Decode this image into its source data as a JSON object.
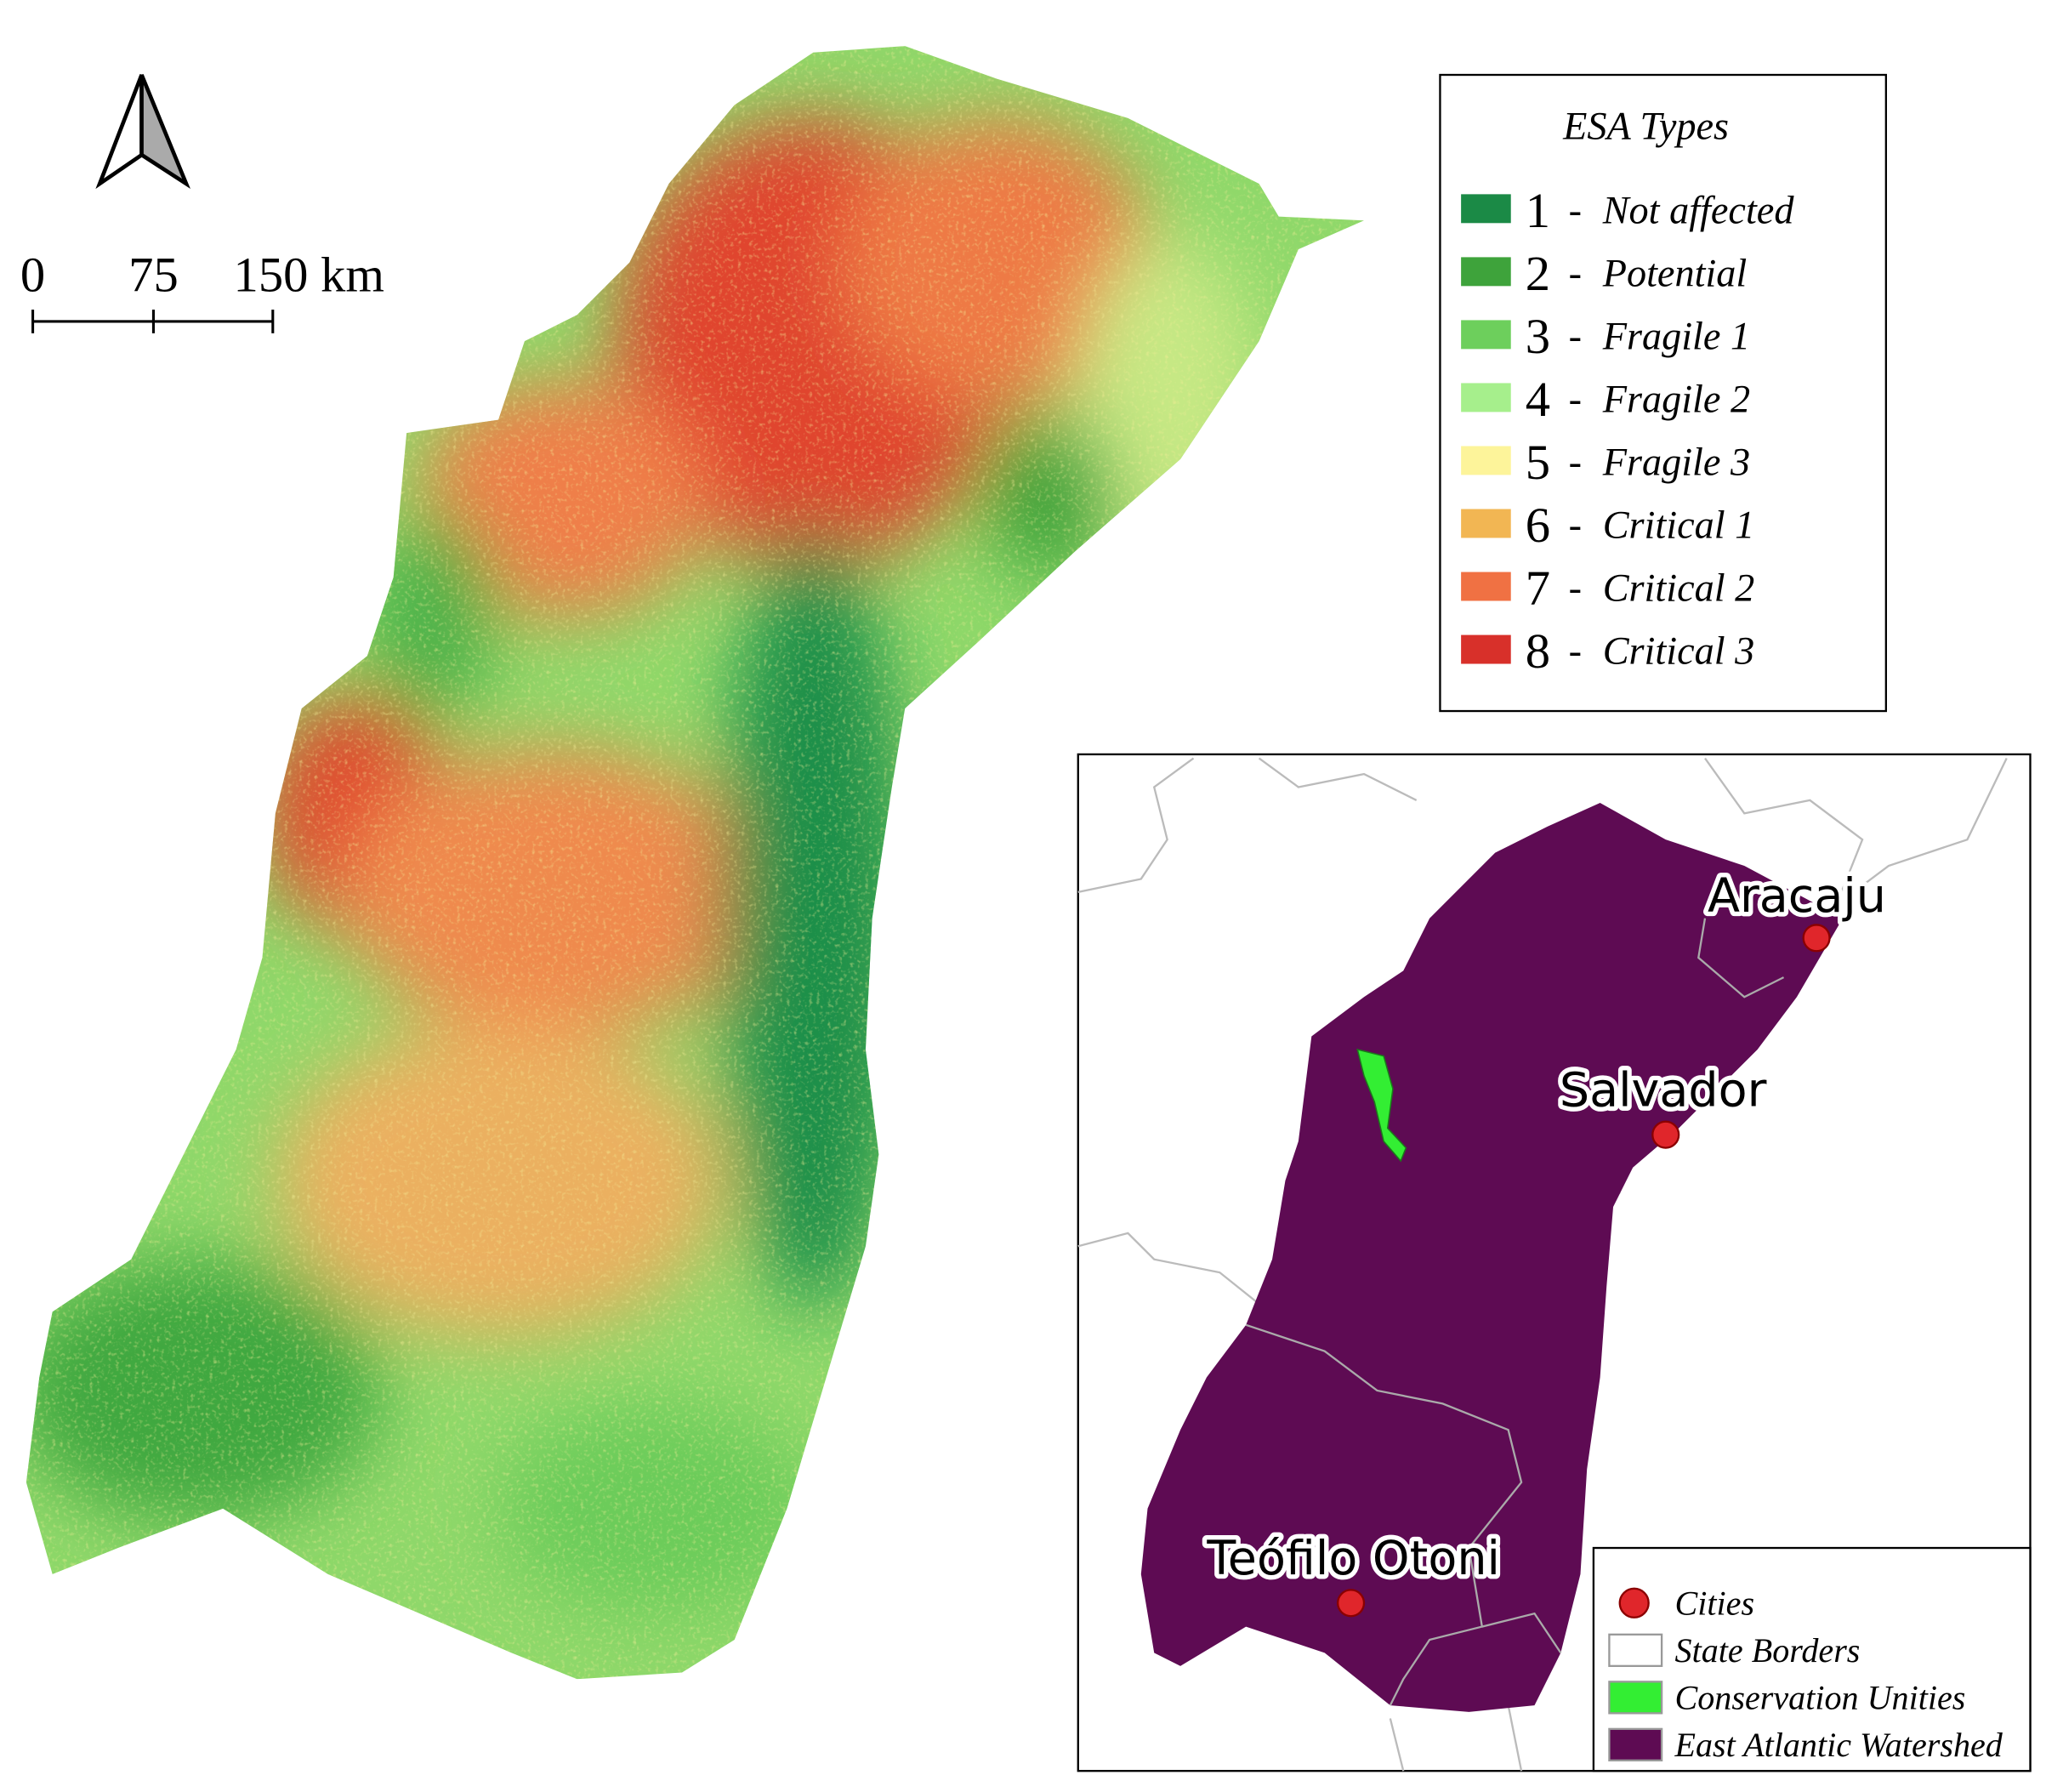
{
  "scale_bar": {
    "labels": [
      "0",
      "75",
      "150 km"
    ]
  },
  "legend": {
    "title": "ESA Types",
    "separator": "-",
    "items": [
      {
        "code": "1",
        "label": "Not affected",
        "color": "#1b8a46"
      },
      {
        "code": "2",
        "label": "Potential",
        "color": "#3ea33b"
      },
      {
        "code": "3",
        "label": "Fragile 1",
        "color": "#6dcf5c"
      },
      {
        "code": "4",
        "label": "Fragile 2",
        "color": "#a6ef8c"
      },
      {
        "code": "5",
        "label": "Fragile 3",
        "color": "#fdf49a"
      },
      {
        "code": "6",
        "label": "Critical 1",
        "color": "#f2b653"
      },
      {
        "code": "7",
        "label": "Critical 2",
        "color": "#f07143"
      },
      {
        "code": "8",
        "label": "Critical 3",
        "color": "#d8302a"
      }
    ]
  },
  "inset": {
    "cities": [
      "Aracaju",
      "Salvador",
      "Teófilo Otoni"
    ],
    "legend": {
      "items": [
        {
          "label": "Cities",
          "color": "#e0262b",
          "symbol": "circle"
        },
        {
          "label": "State Borders",
          "color": "#ffffff",
          "symbol": "rect"
        },
        {
          "label": "Conservation Unities",
          "color": "#33ee33",
          "symbol": "rect"
        },
        {
          "label": "East Atlantic Watershed",
          "color": "#5e0b53",
          "symbol": "rect"
        }
      ]
    }
  }
}
